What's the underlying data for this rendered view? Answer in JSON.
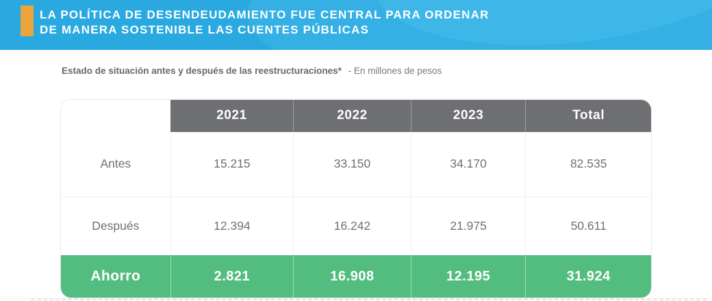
{
  "banner": {
    "title_line1": "LA POLÍTICA DE DESENDEUDAMIENTO FUE CENTRAL PARA ORDENAR",
    "title_line2": "DE MANERA SOSTENIBLE LAS CUENTES PÚBLICAS"
  },
  "subtitle": {
    "heading": "Estado de situación antes y después de las reestructuraciones*",
    "note": "- En millones de pesos"
  },
  "chart_data": {
    "type": "table",
    "title": "Estado de situación antes y después de las reestructuraciones* - En millones de pesos",
    "unit": "millones de pesos",
    "columns": [
      "",
      "2021",
      "2022",
      "2023",
      "Total"
    ],
    "rows": [
      {
        "label": "Antes",
        "values": [
          "15.215",
          "33.150",
          "34.170",
          "82.535"
        ]
      },
      {
        "label": "Después",
        "values": [
          "12.394",
          "16.242",
          "21.975",
          "50.611"
        ]
      },
      {
        "label": "Ahorro",
        "values": [
          "2.821",
          "16.908",
          "12.195",
          "31.924"
        ]
      }
    ]
  },
  "colors": {
    "banner_bg": "#29A9E0",
    "banner_swoosh": "#34B0E5",
    "accent_bar": "#EAA63C",
    "header_row_bg": "#6E6F72",
    "savings_row_bg": "#53BD7F",
    "body_text": "#6F7072",
    "title_text": "#FFFFFF"
  }
}
